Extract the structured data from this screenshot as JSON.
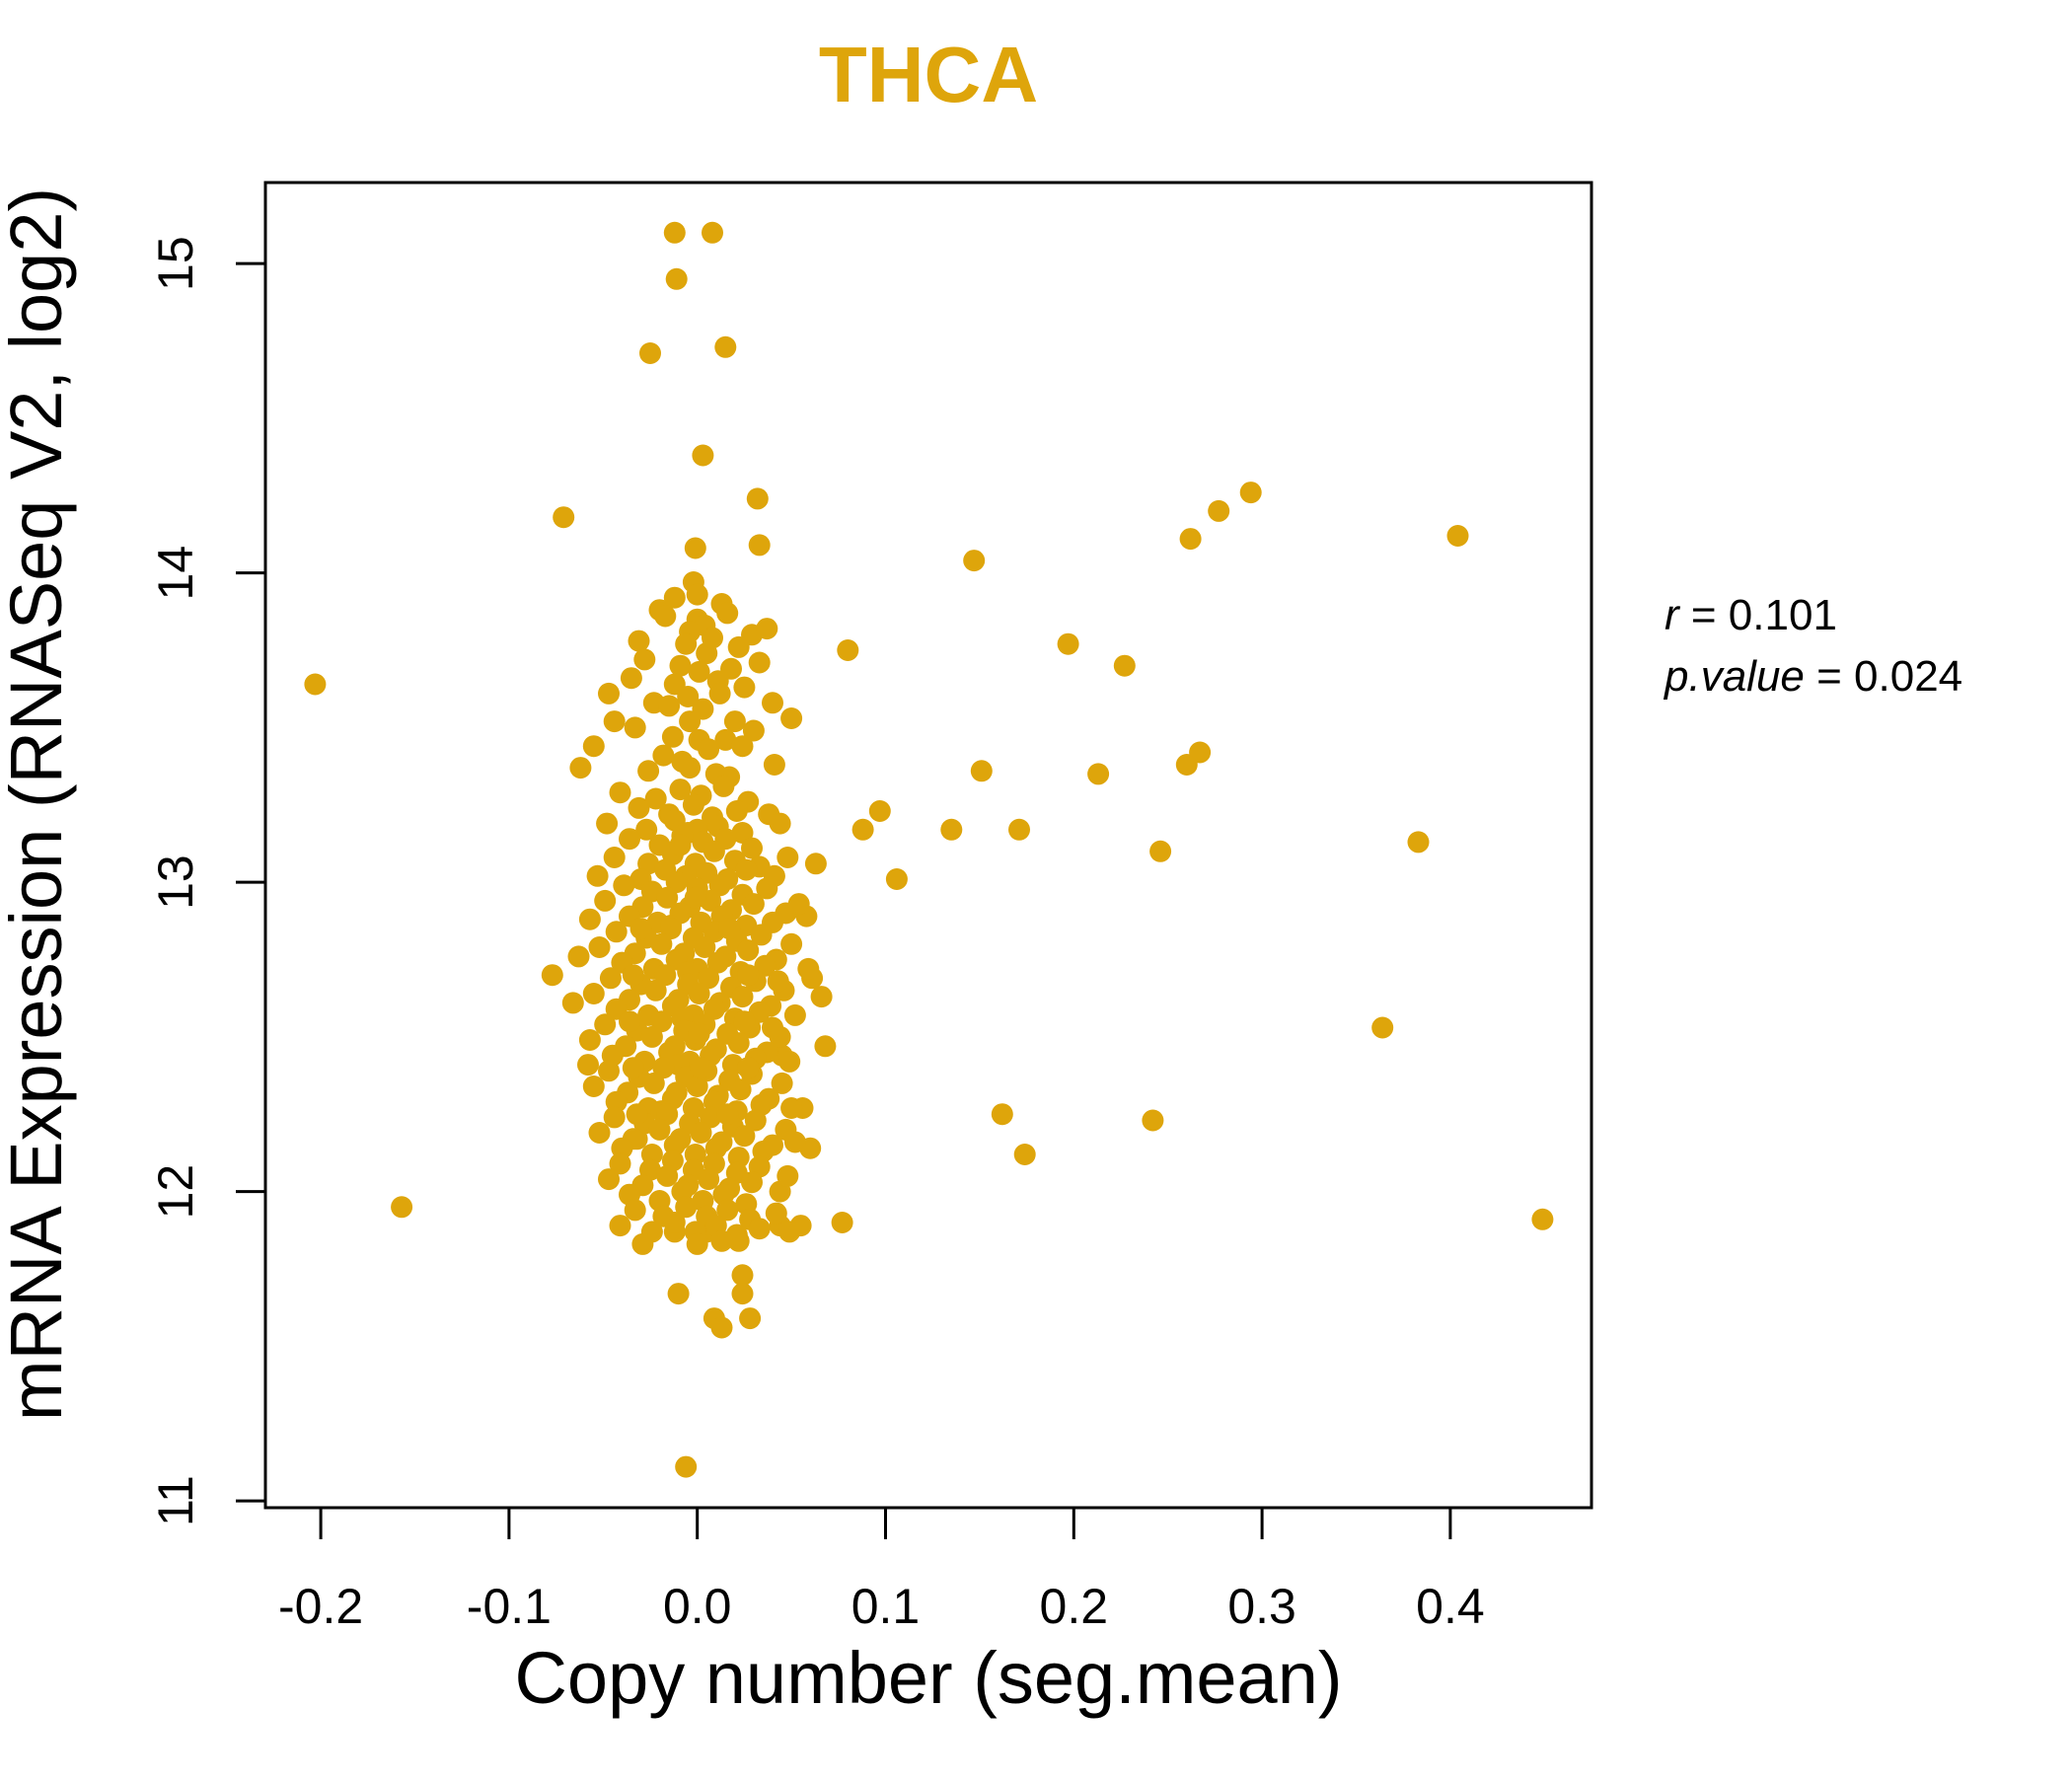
{
  "title": {
    "text": "THCA",
    "color": "#DEA50B"
  },
  "annotation": {
    "lines": [
      {
        "var": "r",
        "rest": " = 0.101"
      },
      {
        "var": "p.value",
        "rest": " = 0.024"
      }
    ]
  },
  "axes": {
    "x": {
      "label": "Copy number (seg.mean)",
      "ticks": [
        "-0.2",
        "-0.1",
        "0.0",
        "0.1",
        "0.2",
        "0.3",
        "0.4"
      ]
    },
    "y": {
      "label": "mRNA Expression (RNASeq V2, log2)",
      "ticks": [
        "11",
        "12",
        "13",
        "14",
        "15"
      ]
    }
  },
  "chart_data": {
    "type": "scatter",
    "title": "THCA",
    "xlabel": "Copy number (seg.mean)",
    "ylabel": "mRNA Expression (RNASeq V2, log2)",
    "xlim": [
      -0.2294,
      0.475
    ],
    "ylim": [
      10.978,
      15.262
    ],
    "x_ticks": [
      -0.2,
      -0.1,
      0.0,
      0.1,
      0.2,
      0.3,
      0.4
    ],
    "y_ticks": [
      11,
      12,
      13,
      14,
      15
    ],
    "grid": false,
    "legend": "none",
    "point_color": "#DEA50B",
    "point_radius_px": 11,
    "stats": {
      "r": 0.101,
      "p_value": 0.024
    },
    "points": [
      [
        -0.012,
        15.1
      ],
      [
        0.008,
        15.1
      ],
      [
        -0.011,
        14.95
      ],
      [
        -0.025,
        14.71
      ],
      [
        0.015,
        14.73
      ],
      [
        0.003,
        14.38
      ],
      [
        0.032,
        14.24
      ],
      [
        0.033,
        14.09
      ],
      [
        -0.001,
        14.08
      ],
      [
        -0.002,
        13.97
      ],
      [
        0.0,
        13.93
      ],
      [
        -0.071,
        14.18
      ],
      [
        0.147,
        14.04
      ],
      [
        0.262,
        14.11
      ],
      [
        0.277,
        14.2
      ],
      [
        0.294,
        14.26
      ],
      [
        0.404,
        14.12
      ],
      [
        0.0,
        13.85
      ],
      [
        0.004,
        13.83
      ],
      [
        -0.004,
        13.81
      ],
      [
        0.029,
        13.8
      ],
      [
        0.005,
        13.74
      ],
      [
        -0.009,
        13.7
      ],
      [
        0.001,
        13.68
      ],
      [
        0.08,
        13.75
      ],
      [
        0.197,
        13.77
      ],
      [
        0.227,
        13.7
      ],
      [
        0.033,
        13.71
      ],
      [
        0.011,
        13.65
      ],
      [
        -0.012,
        13.64
      ],
      [
        -0.023,
        13.58
      ],
      [
        -0.015,
        13.57
      ],
      [
        0.012,
        13.61
      ],
      [
        -0.203,
        13.64
      ],
      [
        -0.044,
        13.52
      ],
      [
        -0.004,
        13.52
      ],
      [
        0.02,
        13.52
      ],
      [
        -0.013,
        13.47
      ],
      [
        0.001,
        13.46
      ],
      [
        0.015,
        13.46
      ],
      [
        -0.026,
        13.36
      ],
      [
        -0.004,
        13.37
      ],
      [
        0.01,
        13.35
      ],
      [
        0.017,
        13.34
      ],
      [
        0.151,
        13.36
      ],
      [
        0.213,
        13.35
      ],
      [
        0.26,
        13.38
      ],
      [
        0.267,
        13.42
      ],
      [
        0.088,
        13.17
      ],
      [
        0.097,
        13.23
      ],
      [
        0.135,
        13.17
      ],
      [
        0.171,
        13.17
      ],
      [
        0.246,
        13.1
      ],
      [
        0.106,
        13.01
      ],
      [
        0.383,
        13.13
      ],
      [
        0.058,
        12.89
      ],
      [
        0.061,
        12.69
      ],
      [
        -0.077,
        12.7
      ],
      [
        -0.058,
        12.41
      ],
      [
        0.045,
        12.44
      ],
      [
        0.364,
        12.53
      ],
      [
        0.162,
        12.25
      ],
      [
        0.174,
        12.12
      ],
      [
        0.242,
        12.23
      ],
      [
        0.056,
        12.27
      ],
      [
        0.06,
        12.14
      ],
      [
        -0.032,
        12.17
      ],
      [
        0.077,
        11.9
      ],
      [
        -0.157,
        11.95
      ],
      [
        0.449,
        11.91
      ],
      [
        -0.012,
        11.87
      ],
      [
        0.005,
        11.87
      ],
      [
        0.022,
        11.84
      ],
      [
        0.044,
        11.89
      ],
      [
        0.055,
        11.89
      ],
      [
        0.024,
        11.73
      ],
      [
        0.024,
        11.67
      ],
      [
        -0.01,
        11.67
      ],
      [
        0.009,
        11.59
      ],
      [
        0.013,
        11.56
      ],
      [
        0.028,
        11.59
      ],
      [
        -0.006,
        11.11
      ],
      [
        -0.02,
        13.88
      ],
      [
        0.013,
        13.9
      ],
      [
        -0.031,
        13.78
      ],
      [
        0.022,
        13.76
      ],
      [
        -0.006,
        13.77
      ],
      [
        0.037,
        13.82
      ],
      [
        -0.017,
        13.86
      ],
      [
        0.008,
        13.79
      ],
      [
        -0.012,
        13.92
      ],
      [
        0.016,
        13.87
      ],
      [
        -0.035,
        13.66
      ],
      [
        0.018,
        13.69
      ],
      [
        -0.005,
        13.6
      ],
      [
        0.025,
        13.63
      ],
      [
        0.04,
        13.58
      ],
      [
        -0.047,
        13.61
      ],
      [
        0.003,
        13.56
      ],
      [
        -0.028,
        13.72
      ],
      [
        -0.055,
        13.44
      ],
      [
        0.03,
        13.49
      ],
      [
        -0.018,
        13.41
      ],
      [
        0.006,
        13.43
      ],
      [
        0.041,
        13.38
      ],
      [
        -0.033,
        13.5
      ],
      [
        0.024,
        13.44
      ],
      [
        -0.008,
        13.39
      ],
      [
        0.05,
        13.53
      ],
      [
        -0.062,
        13.37
      ],
      [
        -0.041,
        13.29
      ],
      [
        -0.022,
        13.27
      ],
      [
        -0.009,
        13.3
      ],
      [
        0.002,
        13.28
      ],
      [
        0.014,
        13.31
      ],
      [
        0.027,
        13.26
      ],
      [
        -0.031,
        13.24
      ],
      [
        -0.015,
        13.22
      ],
      [
        -0.002,
        13.25
      ],
      [
        0.008,
        13.21
      ],
      [
        0.021,
        13.23
      ],
      [
        0.038,
        13.22
      ],
      [
        -0.048,
        13.19
      ],
      [
        -0.027,
        13.17
      ],
      [
        -0.012,
        13.2
      ],
      [
        0.0,
        13.17
      ],
      [
        0.011,
        13.18
      ],
      [
        0.024,
        13.16
      ],
      [
        0.044,
        13.19
      ],
      [
        -0.005,
        13.16
      ],
      [
        -0.036,
        13.14
      ],
      [
        -0.02,
        13.12
      ],
      [
        -0.008,
        13.15
      ],
      [
        0.003,
        13.13
      ],
      [
        0.015,
        13.14
      ],
      [
        0.029,
        13.11
      ],
      [
        0.048,
        13.08
      ],
      [
        -0.044,
        13.08
      ],
      [
        -0.026,
        13.06
      ],
      [
        -0.013,
        13.09
      ],
      [
        -0.001,
        13.06
      ],
      [
        0.009,
        13.1
      ],
      [
        0.02,
        13.07
      ],
      [
        0.033,
        13.05
      ],
      [
        -0.053,
        13.02
      ],
      [
        -0.03,
        13.01
      ],
      [
        -0.017,
        13.04
      ],
      [
        -0.006,
        13.02
      ],
      [
        0.005,
        13.03
      ],
      [
        0.016,
        13.01
      ],
      [
        0.026,
        13.04
      ],
      [
        0.041,
        13.02
      ],
      [
        0.063,
        13.06
      ],
      [
        -0.009,
        13.12
      ],
      [
        -0.039,
        12.99
      ],
      [
        -0.024,
        12.97
      ],
      [
        -0.011,
        13.0
      ],
      [
        0.0,
        12.98
      ],
      [
        0.012,
        12.99
      ],
      [
        0.024,
        12.96
      ],
      [
        0.037,
        12.98
      ],
      [
        -0.049,
        12.94
      ],
      [
        -0.029,
        12.92
      ],
      [
        -0.016,
        12.95
      ],
      [
        -0.004,
        12.92
      ],
      [
        0.007,
        12.94
      ],
      [
        0.018,
        12.91
      ],
      [
        0.03,
        12.93
      ],
      [
        0.047,
        12.9
      ],
      [
        -0.036,
        12.89
      ],
      [
        -0.021,
        12.87
      ],
      [
        -0.009,
        12.9
      ],
      [
        0.002,
        12.87
      ],
      [
        0.013,
        12.89
      ],
      [
        0.026,
        12.86
      ],
      [
        -0.057,
        12.88
      ],
      [
        0.04,
        12.87
      ],
      [
        -0.001,
        12.95
      ],
      [
        -0.014,
        12.86
      ],
      [
        0.054,
        12.93
      ],
      [
        -0.043,
        12.84
      ],
      [
        -0.027,
        12.82
      ],
      [
        -0.014,
        12.85
      ],
      [
        -0.002,
        12.82
      ],
      [
        0.009,
        12.84
      ],
      [
        0.021,
        12.81
      ],
      [
        0.034,
        12.83
      ],
      [
        0.05,
        12.8
      ],
      [
        -0.052,
        12.79
      ],
      [
        -0.033,
        12.77
      ],
      [
        -0.019,
        12.8
      ],
      [
        -0.007,
        12.77
      ],
      [
        0.004,
        12.79
      ],
      [
        0.015,
        12.76
      ],
      [
        0.027,
        12.78
      ],
      [
        0.042,
        12.75
      ],
      [
        -0.04,
        12.74
      ],
      [
        -0.023,
        12.72
      ],
      [
        -0.011,
        12.75
      ],
      [
        0.0,
        12.72
      ],
      [
        0.011,
        12.74
      ],
      [
        0.023,
        12.71
      ],
      [
        0.036,
        12.73
      ],
      [
        -0.063,
        12.76
      ],
      [
        0.059,
        12.72
      ],
      [
        -0.03,
        12.85
      ],
      [
        0.017,
        12.85
      ],
      [
        -0.005,
        12.71
      ],
      [
        -0.046,
        12.69
      ],
      [
        -0.03,
        12.67
      ],
      [
        -0.017,
        12.7
      ],
      [
        -0.005,
        12.67
      ],
      [
        0.006,
        12.69
      ],
      [
        0.018,
        12.66
      ],
      [
        0.031,
        12.68
      ],
      [
        0.046,
        12.65
      ],
      [
        -0.055,
        12.64
      ],
      [
        -0.036,
        12.62
      ],
      [
        -0.022,
        12.65
      ],
      [
        -0.01,
        12.62
      ],
      [
        0.001,
        12.64
      ],
      [
        0.012,
        12.61
      ],
      [
        0.024,
        12.63
      ],
      [
        0.039,
        12.6
      ],
      [
        -0.043,
        12.59
      ],
      [
        -0.026,
        12.57
      ],
      [
        -0.013,
        12.6
      ],
      [
        -0.002,
        12.57
      ],
      [
        0.009,
        12.59
      ],
      [
        0.02,
        12.56
      ],
      [
        0.033,
        12.58
      ],
      [
        0.052,
        12.57
      ],
      [
        -0.066,
        12.61
      ],
      [
        0.066,
        12.63
      ],
      [
        -0.034,
        12.7
      ],
      [
        0.027,
        12.7
      ],
      [
        -0.008,
        12.56
      ],
      [
        0.043,
        12.68
      ],
      [
        -0.049,
        12.54
      ],
      [
        -0.032,
        12.52
      ],
      [
        -0.019,
        12.55
      ],
      [
        -0.007,
        12.52
      ],
      [
        0.004,
        12.54
      ],
      [
        0.016,
        12.51
      ],
      [
        0.028,
        12.53
      ],
      [
        0.044,
        12.5
      ],
      [
        -0.057,
        12.49
      ],
      [
        -0.038,
        12.47
      ],
      [
        -0.024,
        12.5
      ],
      [
        -0.012,
        12.47
      ],
      [
        -0.001,
        12.49
      ],
      [
        0.01,
        12.46
      ],
      [
        0.022,
        12.48
      ],
      [
        0.037,
        12.45
      ],
      [
        -0.045,
        12.44
      ],
      [
        -0.028,
        12.42
      ],
      [
        -0.015,
        12.45
      ],
      [
        -0.004,
        12.42
      ],
      [
        0.007,
        12.44
      ],
      [
        0.019,
        12.41
      ],
      [
        0.031,
        12.43
      ],
      [
        0.049,
        12.42
      ],
      [
        0.068,
        12.47
      ],
      [
        -0.036,
        12.55
      ],
      [
        0.025,
        12.55
      ],
      [
        -0.01,
        12.41
      ],
      [
        0.04,
        12.53
      ],
      [
        0.001,
        12.51
      ],
      [
        -0.047,
        12.39
      ],
      [
        -0.031,
        12.37
      ],
      [
        -0.018,
        12.4
      ],
      [
        -0.006,
        12.37
      ],
      [
        0.005,
        12.39
      ],
      [
        0.017,
        12.36
      ],
      [
        0.029,
        12.38
      ],
      [
        0.045,
        12.35
      ],
      [
        -0.055,
        12.34
      ],
      [
        -0.037,
        12.32
      ],
      [
        -0.023,
        12.35
      ],
      [
        -0.011,
        12.32
      ],
      [
        0.0,
        12.34
      ],
      [
        0.011,
        12.31
      ],
      [
        0.023,
        12.33
      ],
      [
        0.038,
        12.3
      ],
      [
        -0.043,
        12.29
      ],
      [
        -0.026,
        12.27
      ],
      [
        -0.013,
        12.3
      ],
      [
        -0.002,
        12.27
      ],
      [
        0.009,
        12.29
      ],
      [
        0.021,
        12.26
      ],
      [
        0.034,
        12.28
      ],
      [
        0.05,
        12.27
      ],
      [
        -0.019,
        12.26
      ],
      [
        0.002,
        12.4
      ],
      [
        -0.034,
        12.4
      ],
      [
        0.027,
        12.4
      ],
      [
        -0.044,
        12.24
      ],
      [
        -0.028,
        12.22
      ],
      [
        -0.016,
        12.25
      ],
      [
        -0.004,
        12.22
      ],
      [
        0.007,
        12.24
      ],
      [
        0.019,
        12.21
      ],
      [
        0.031,
        12.23
      ],
      [
        0.047,
        12.2
      ],
      [
        -0.052,
        12.19
      ],
      [
        -0.034,
        12.17
      ],
      [
        -0.02,
        12.2
      ],
      [
        -0.009,
        12.17
      ],
      [
        0.002,
        12.19
      ],
      [
        0.013,
        12.16
      ],
      [
        0.025,
        12.18
      ],
      [
        0.04,
        12.15
      ],
      [
        -0.04,
        12.14
      ],
      [
        -0.024,
        12.12
      ],
      [
        -0.012,
        12.15
      ],
      [
        -0.001,
        12.12
      ],
      [
        0.01,
        12.14
      ],
      [
        0.022,
        12.11
      ],
      [
        0.035,
        12.13
      ],
      [
        -0.032,
        12.25
      ],
      [
        0.016,
        12.25
      ],
      [
        0.052,
        12.16
      ],
      [
        -0.041,
        12.09
      ],
      [
        -0.025,
        12.07
      ],
      [
        -0.013,
        12.1
      ],
      [
        -0.002,
        12.07
      ],
      [
        0.009,
        12.09
      ],
      [
        0.021,
        12.06
      ],
      [
        0.033,
        12.08
      ],
      [
        -0.047,
        12.04
      ],
      [
        -0.029,
        12.02
      ],
      [
        -0.016,
        12.05
      ],
      [
        -0.005,
        12.02
      ],
      [
        0.006,
        12.04
      ],
      [
        0.017,
        12.01
      ],
      [
        0.029,
        12.03
      ],
      [
        0.044,
        12.0
      ],
      [
        -0.036,
        11.99
      ],
      [
        -0.02,
        11.97
      ],
      [
        -0.008,
        12.0
      ],
      [
        0.003,
        11.97
      ],
      [
        0.014,
        11.99
      ],
      [
        0.026,
        11.96
      ],
      [
        0.048,
        12.05
      ],
      [
        -0.033,
        11.94
      ],
      [
        -0.018,
        11.92
      ],
      [
        -0.006,
        11.95
      ],
      [
        0.005,
        11.92
      ],
      [
        0.016,
        11.94
      ],
      [
        0.028,
        11.91
      ],
      [
        0.042,
        11.93
      ],
      [
        -0.041,
        11.89
      ],
      [
        -0.024,
        11.87
      ],
      [
        -0.012,
        11.9
      ],
      [
        -0.001,
        11.87
      ],
      [
        0.01,
        11.89
      ],
      [
        0.021,
        11.86
      ],
      [
        0.033,
        11.88
      ],
      [
        -0.029,
        11.83
      ],
      [
        0.0,
        11.83
      ],
      [
        0.013,
        11.84
      ],
      [
        0.049,
        11.87
      ]
    ]
  }
}
